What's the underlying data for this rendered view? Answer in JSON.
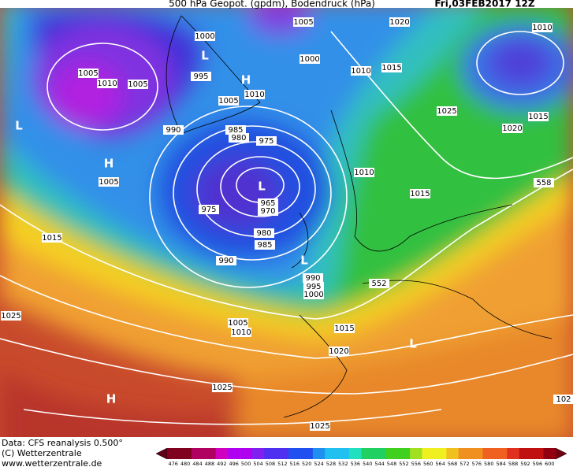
{
  "header": {
    "title": "500 hPa Geopot. (gpdm), Bodendruck (hPa)",
    "date": "Fri,03FEB2017 12Z"
  },
  "map": {
    "isobar_labels": [
      1005,
      1020,
      1010,
      1000,
      1000,
      1010,
      1015,
      1005,
      1010,
      1005,
      995,
      1010,
      1005,
      1025,
      1015,
      1020,
      990,
      985,
      980,
      975,
      1010,
      1005,
      1015,
      558,
      965,
      970,
      975,
      1015,
      980,
      985,
      990,
      990,
      995,
      552,
      1000,
      1025,
      1005,
      1010,
      1015,
      1020,
      1025,
      1025,
      102
    ],
    "pressure_centers": [
      "L",
      "H",
      "L",
      "H",
      "L",
      "L",
      "L",
      "H"
    ]
  },
  "footer": {
    "source": "Data: CFS reanalysis 0.500°",
    "copyright": "(C) Wetterzentrale",
    "url": "www.wetterzentrale.de"
  },
  "colorbar": {
    "ticks": [
      476,
      480,
      484,
      488,
      492,
      496,
      500,
      504,
      508,
      512,
      516,
      520,
      524,
      528,
      532,
      536,
      540,
      544,
      548,
      552,
      556,
      560,
      564,
      568,
      572,
      576,
      580,
      584,
      588,
      592,
      596,
      600
    ]
  }
}
